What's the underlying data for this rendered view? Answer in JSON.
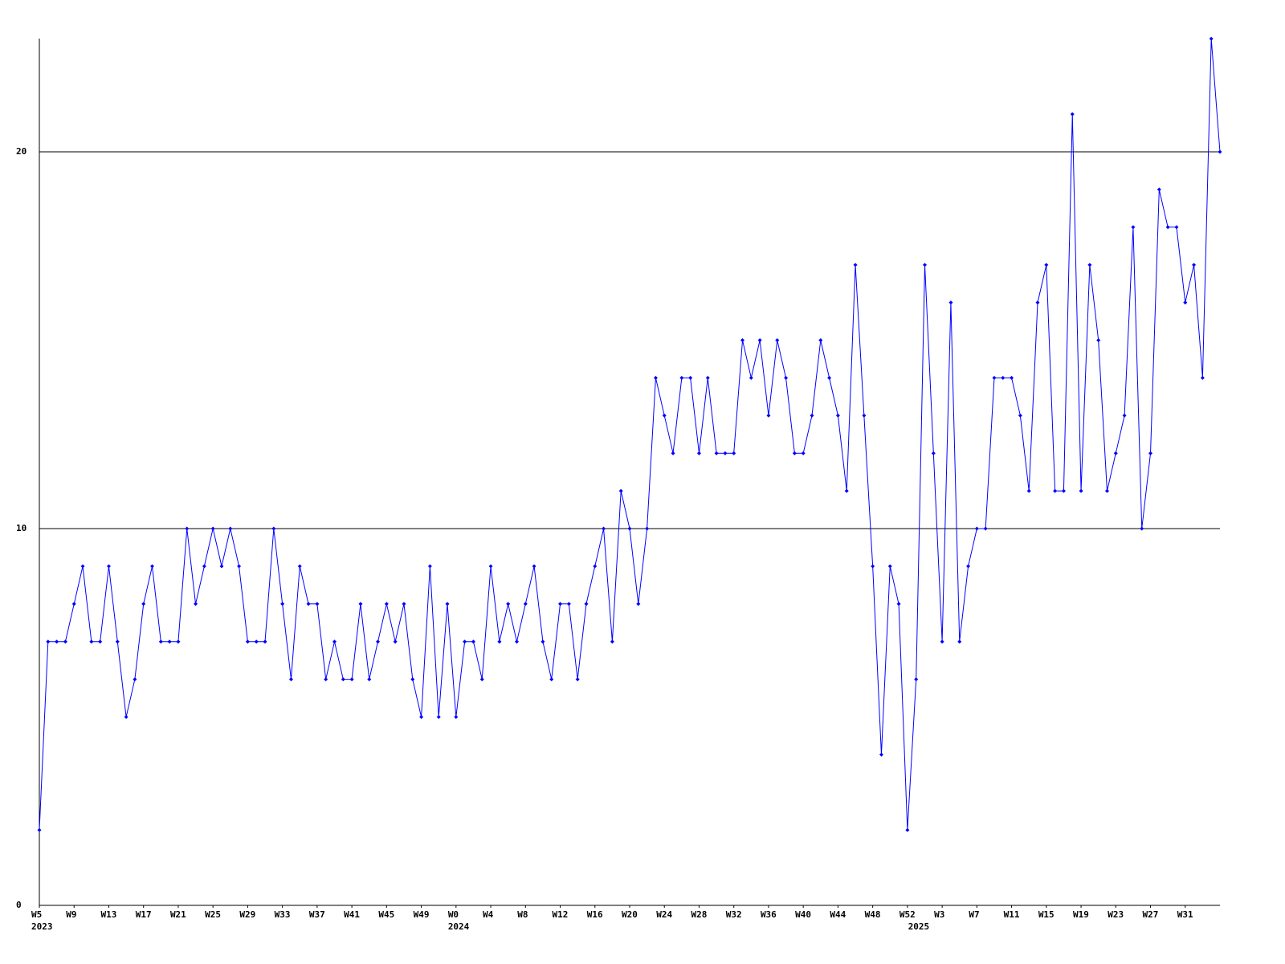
{
  "chart_data": {
    "type": "line",
    "color": "#0000ff",
    "grid": true,
    "categories": [
      "W5",
      null,
      null,
      null,
      "W9",
      null,
      null,
      null,
      "W13",
      null,
      null,
      null,
      "W17",
      null,
      null,
      null,
      "W21",
      null,
      null,
      null,
      "W25",
      null,
      null,
      null,
      "W29",
      null,
      null,
      null,
      "W33",
      null,
      null,
      null,
      "W37",
      null,
      null,
      null,
      "W41",
      null,
      null,
      null,
      "W45",
      null,
      null,
      null,
      "W49",
      null,
      null,
      null,
      "W0",
      null,
      null,
      null,
      "W4",
      null,
      null,
      null,
      "W8",
      null,
      null,
      null,
      "W12",
      null,
      null,
      null,
      "W16",
      null,
      null,
      null,
      "W20",
      null,
      null,
      null,
      "W24",
      null,
      null,
      null,
      "W28",
      null,
      null,
      null,
      "W32",
      null,
      null,
      null,
      "W36",
      null,
      null,
      null,
      "W40",
      null,
      null,
      null,
      "W44",
      null,
      null,
      null,
      "W48",
      null,
      null,
      null,
      "W52",
      null,
      null,
      null,
      "W3",
      null,
      null,
      null,
      "W7",
      null,
      null,
      null,
      "W11",
      null,
      null,
      null,
      "W15",
      null,
      null,
      null,
      "W19",
      null,
      null,
      null,
      "W23",
      null,
      null,
      null,
      "W27",
      null,
      null,
      null,
      "W31",
      null,
      null,
      null,
      null
    ],
    "year_labels": [
      {
        "index": 0,
        "label": "2023"
      },
      {
        "index": 48,
        "label": "2024"
      },
      {
        "index": 101,
        "label": "2025"
      }
    ],
    "values": [
      2,
      7,
      7,
      7,
      8,
      9,
      7,
      7,
      9,
      7,
      5,
      6,
      8,
      9,
      7,
      7,
      7,
      10,
      8,
      9,
      10,
      9,
      10,
      9,
      7,
      7,
      7,
      10,
      8,
      6,
      9,
      8,
      8,
      6,
      7,
      6,
      6,
      8,
      6,
      7,
      8,
      7,
      8,
      6,
      5,
      9,
      5,
      8,
      5,
      7,
      7,
      6,
      9,
      7,
      8,
      7,
      8,
      9,
      7,
      6,
      8,
      8,
      6,
      8,
      9,
      10,
      7,
      11,
      10,
      8,
      10,
      14,
      13,
      12,
      14,
      14,
      12,
      14,
      12,
      12,
      12,
      15,
      14,
      15,
      13,
      15,
      14,
      12,
      12,
      13,
      15,
      14,
      13,
      11,
      17,
      13,
      9,
      4,
      9,
      8,
      2,
      6,
      17,
      12,
      7,
      16,
      7,
      9,
      10,
      10,
      14,
      14,
      14,
      13,
      11,
      16,
      17,
      11,
      11,
      21,
      11,
      17,
      15,
      11,
      12,
      13,
      18,
      10,
      12,
      19,
      18,
      18,
      16,
      17,
      14,
      23,
      20
    ],
    "ylim": [
      0,
      23
    ],
    "yticks": [
      0,
      10,
      20
    ]
  }
}
